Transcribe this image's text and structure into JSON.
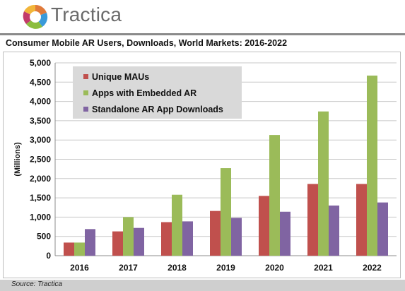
{
  "brand": {
    "name": "Tractica",
    "logo_icon": "tractica-logo-icon"
  },
  "chart_data": {
    "type": "bar",
    "title": "Consumer Mobile AR Users, Downloads, World Markets: 2016-2022",
    "ylabel": "(Millions)",
    "xlabel": "",
    "categories": [
      "2016",
      "2017",
      "2018",
      "2019",
      "2020",
      "2021",
      "2022"
    ],
    "ylim": [
      0,
      5000
    ],
    "yticks": [
      "0",
      "500",
      "1,000",
      "1,500",
      "2,000",
      "2,500",
      "3,000",
      "3,500",
      "4,000",
      "4,500",
      "5,000"
    ],
    "grid": true,
    "legend_position": "top-left",
    "series": [
      {
        "name": "Unique MAUs",
        "color": "#c0504d",
        "values": [
          340,
          630,
          870,
          1160,
          1550,
          1860,
          1860
        ]
      },
      {
        "name": "Apps with Embedded AR",
        "color": "#9bbb59",
        "values": [
          340,
          1000,
          1580,
          2270,
          3130,
          3740,
          4670
        ]
      },
      {
        "name": "Standalone AR App Downloads",
        "color": "#8064a2",
        "values": [
          690,
          720,
          890,
          980,
          1140,
          1300,
          1380
        ]
      }
    ]
  },
  "footer": {
    "source": "Source: Tractica"
  }
}
